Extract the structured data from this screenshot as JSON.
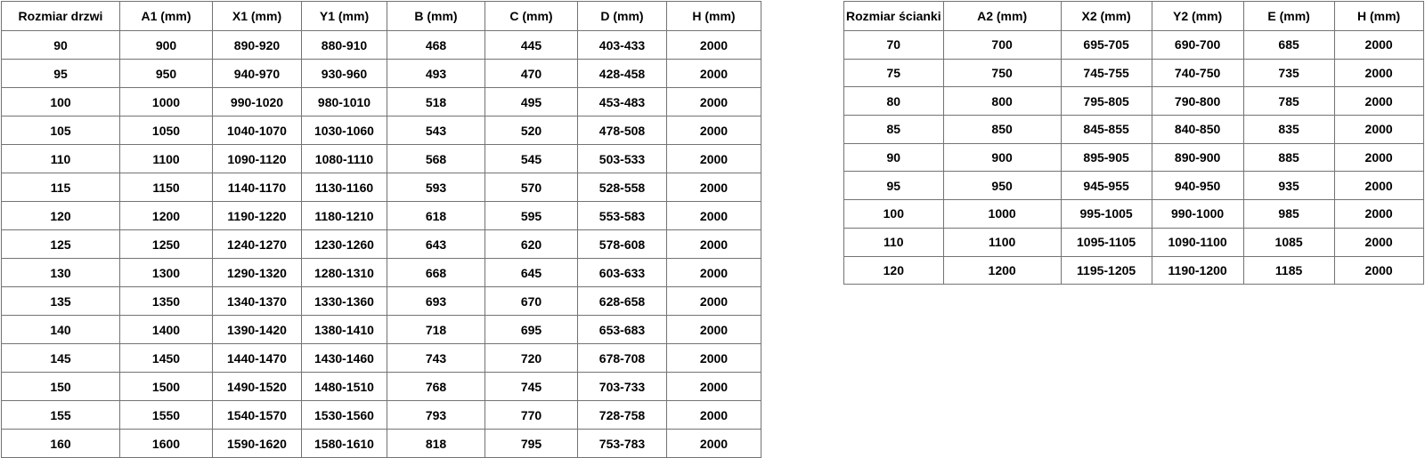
{
  "tables": [
    {
      "id": "door-sizes",
      "title_column": "Rozmiar drzwi",
      "headers": [
        "Rozmiar drzwi",
        "A1 (mm)",
        "X1 (mm)",
        "Y1 (mm)",
        "B (mm)",
        "C (mm)",
        "D (mm)",
        "H (mm)"
      ],
      "rows": [
        [
          "90",
          "900",
          "890-920",
          "880-910",
          "468",
          "445",
          "403-433",
          "2000"
        ],
        [
          "95",
          "950",
          "940-970",
          "930-960",
          "493",
          "470",
          "428-458",
          "2000"
        ],
        [
          "100",
          "1000",
          "990-1020",
          "980-1010",
          "518",
          "495",
          "453-483",
          "2000"
        ],
        [
          "105",
          "1050",
          "1040-1070",
          "1030-1060",
          "543",
          "520",
          "478-508",
          "2000"
        ],
        [
          "110",
          "1100",
          "1090-1120",
          "1080-1110",
          "568",
          "545",
          "503-533",
          "2000"
        ],
        [
          "115",
          "1150",
          "1140-1170",
          "1130-1160",
          "593",
          "570",
          "528-558",
          "2000"
        ],
        [
          "120",
          "1200",
          "1190-1220",
          "1180-1210",
          "618",
          "595",
          "553-583",
          "2000"
        ],
        [
          "125",
          "1250",
          "1240-1270",
          "1230-1260",
          "643",
          "620",
          "578-608",
          "2000"
        ],
        [
          "130",
          "1300",
          "1290-1320",
          "1280-1310",
          "668",
          "645",
          "603-633",
          "2000"
        ],
        [
          "135",
          "1350",
          "1340-1370",
          "1330-1360",
          "693",
          "670",
          "628-658",
          "2000"
        ],
        [
          "140",
          "1400",
          "1390-1420",
          "1380-1410",
          "718",
          "695",
          "653-683",
          "2000"
        ],
        [
          "145",
          "1450",
          "1440-1470",
          "1430-1460",
          "743",
          "720",
          "678-708",
          "2000"
        ],
        [
          "150",
          "1500",
          "1490-1520",
          "1480-1510",
          "768",
          "745",
          "703-733",
          "2000"
        ],
        [
          "155",
          "1550",
          "1540-1570",
          "1530-1560",
          "793",
          "770",
          "728-758",
          "2000"
        ],
        [
          "160",
          "1600",
          "1590-1620",
          "1580-1610",
          "818",
          "795",
          "753-783",
          "2000"
        ]
      ]
    },
    {
      "id": "wall-sizes",
      "title_column": "Rozmiar ścianki",
      "headers": [
        "Rozmiar ścianki",
        "A2 (mm)",
        "X2 (mm)",
        "Y2 (mm)",
        "E (mm)",
        "H (mm)"
      ],
      "rows": [
        [
          "70",
          "700",
          "695-705",
          "690-700",
          "685",
          "2000"
        ],
        [
          "75",
          "750",
          "745-755",
          "740-750",
          "735",
          "2000"
        ],
        [
          "80",
          "800",
          "795-805",
          "790-800",
          "785",
          "2000"
        ],
        [
          "85",
          "850",
          "845-855",
          "840-850",
          "835",
          "2000"
        ],
        [
          "90",
          "900",
          "895-905",
          "890-900",
          "885",
          "2000"
        ],
        [
          "95",
          "950",
          "945-955",
          "940-950",
          "935",
          "2000"
        ],
        [
          "100",
          "1000",
          "995-1005",
          "990-1000",
          "985",
          "2000"
        ],
        [
          "110",
          "1100",
          "1095-1105",
          "1090-1100",
          "1085",
          "2000"
        ],
        [
          "120",
          "1200",
          "1195-1205",
          "1190-1200",
          "1185",
          "2000"
        ]
      ]
    }
  ],
  "colors": {
    "border": "#737373",
    "text": "#000000",
    "background": "#ffffff"
  }
}
